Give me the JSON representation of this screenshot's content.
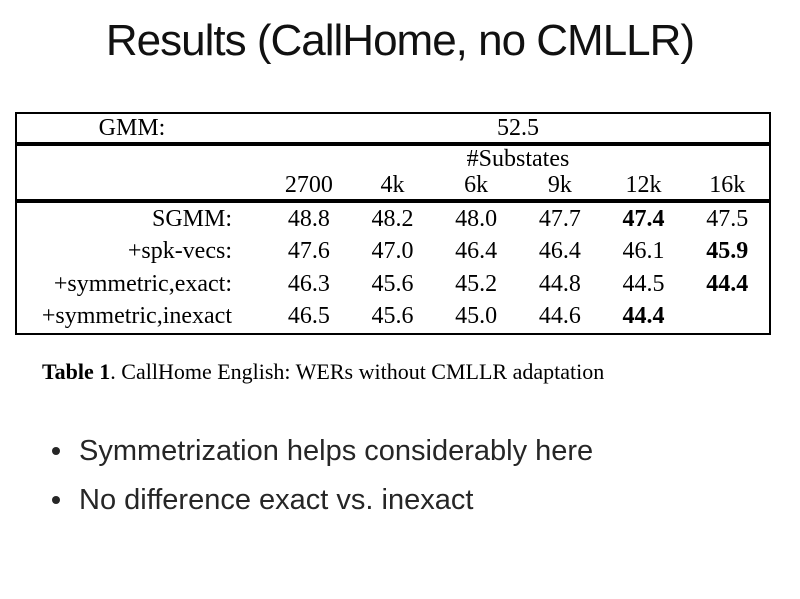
{
  "slide": {
    "title": "Results (CallHome, no CMLLR)"
  },
  "table": {
    "gmm_label": "GMM:",
    "gmm_value": "52.5",
    "substates_header": "#Substates",
    "columns": [
      "2700",
      "4k",
      "6k",
      "9k",
      "12k",
      "16k"
    ],
    "rows": [
      {
        "label": "SGMM:",
        "values": [
          "48.8",
          "48.2",
          "48.0",
          "47.7",
          "47.4",
          "47.5"
        ],
        "bold_indices": [
          4
        ]
      },
      {
        "label": "+spk-vecs:",
        "values": [
          "47.6",
          "47.0",
          "46.4",
          "46.4",
          "46.1",
          "45.9"
        ],
        "bold_indices": [
          5
        ]
      },
      {
        "label": "+symmetric,exact:",
        "values": [
          "46.3",
          "45.6",
          "45.2",
          "44.8",
          "44.5",
          "44.4"
        ],
        "bold_indices": [
          5
        ]
      },
      {
        "label": "+symmetric,inexact",
        "values": [
          "46.5",
          "45.6",
          "45.0",
          "44.6",
          "44.4",
          ""
        ],
        "bold_indices": [
          4
        ]
      }
    ]
  },
  "caption": {
    "label": "Table 1",
    "text": ". CallHome English: WERs without CMLLR adaptation"
  },
  "bullets": [
    "Symmetrization helps considerably here",
    "No difference exact vs. inexact"
  ],
  "colors": {
    "background": "#ffffff",
    "text": "#1a1a1a",
    "table_border": "#000000"
  }
}
